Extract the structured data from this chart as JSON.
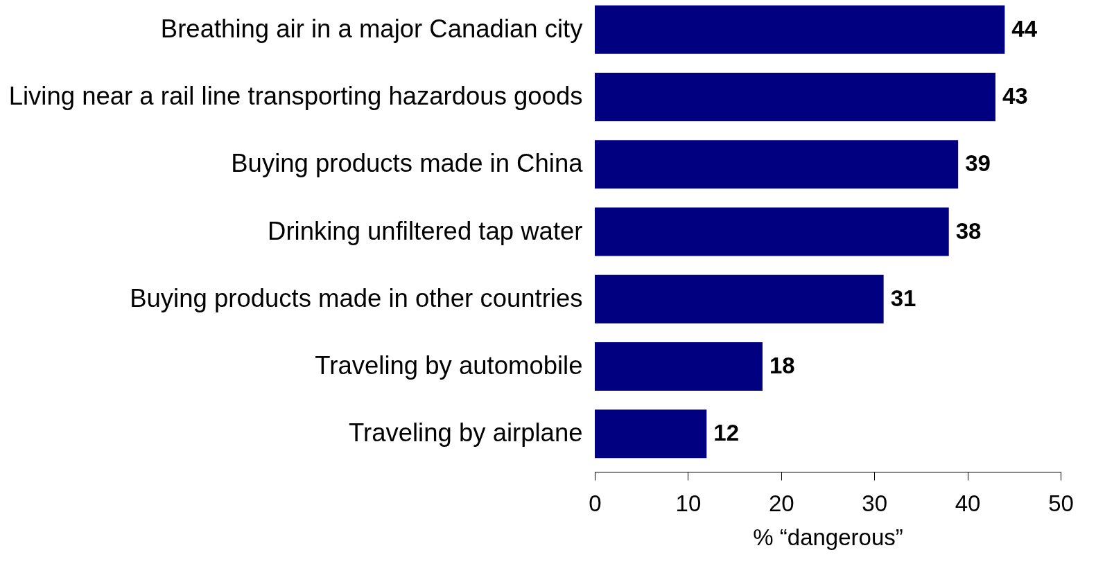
{
  "chart_data": {
    "type": "bar",
    "orientation": "horizontal",
    "xlabel": "% “dangerous”",
    "categories": [
      "Breathing air in a major Canadian city",
      "Living near a rail line transporting hazardous goods",
      "Buying products made in China",
      "Drinking unfiltered tap water",
      "Buying products made in other countries",
      "Traveling by automobile",
      "Traveling by airplane"
    ],
    "values": [
      44,
      43,
      39,
      38,
      31,
      18,
      12
    ],
    "color": "#000080",
    "data_labels": true,
    "xlim": [
      0,
      50
    ],
    "xticks": [
      0,
      10,
      20,
      30,
      40,
      50
    ],
    "grid": false
  }
}
